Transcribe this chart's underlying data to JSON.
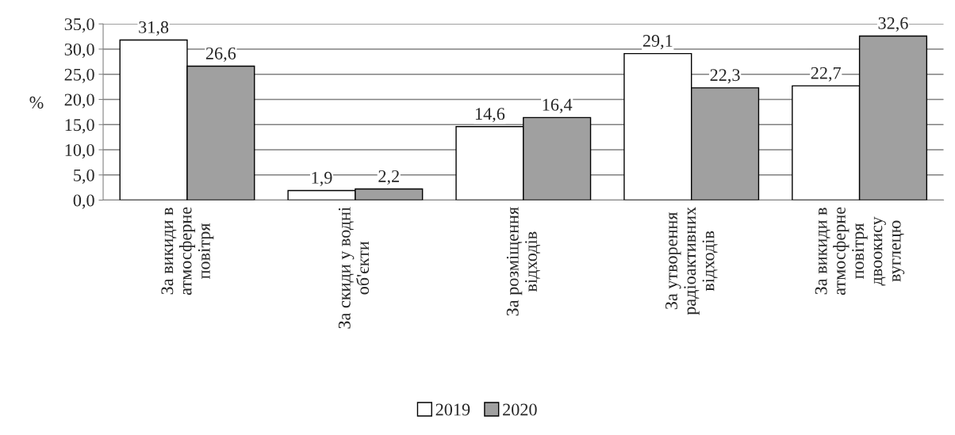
{
  "chart_data": {
    "type": "bar",
    "ylabel": "%",
    "categories": [
      "За викиди в\nатмосферне\nповітря",
      "За скиди у водні\nоб'єкти",
      "За розміщення\nвідходів",
      "За утворення\nрадіоактивних\nвідходів",
      "За викиди в\nатмосферне\nповітря\nдвоокису\nвуглецю"
    ],
    "series": [
      {
        "name": "2019",
        "color": "#ffffff",
        "values": [
          31.8,
          1.9,
          14.6,
          29.1,
          22.7
        ],
        "value_labels": [
          "31,8",
          "1,9",
          "14,6",
          "29,1",
          "22,7"
        ]
      },
      {
        "name": "2020",
        "color": "#a0a0a0",
        "values": [
          26.6,
          2.2,
          16.4,
          22.3,
          32.6
        ],
        "value_labels": [
          "26,6",
          "2,2",
          "16,4",
          "22,3",
          "32,6"
        ]
      }
    ],
    "ylim": [
      0,
      35
    ],
    "yticks": [
      {
        "value": 0,
        "label": "0,0"
      },
      {
        "value": 5,
        "label": "5,0"
      },
      {
        "value": 10,
        "label": "10,0"
      },
      {
        "value": 15,
        "label": "15,0"
      },
      {
        "value": 20,
        "label": "20,0"
      },
      {
        "value": 25,
        "label": "25,0"
      },
      {
        "value": 30,
        "label": "30,0"
      },
      {
        "value": 35,
        "label": "35,0"
      }
    ],
    "grid": "y",
    "legend": "bottom"
  }
}
